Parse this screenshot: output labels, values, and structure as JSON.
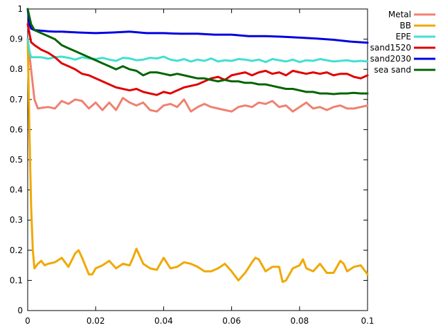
{
  "chart_data": {
    "type": "line",
    "title": "",
    "xlabel": "",
    "ylabel": "",
    "xlim": [
      0,
      0.1
    ],
    "ylim": [
      0,
      1
    ],
    "x_ticks": [
      0,
      0.02,
      0.04,
      0.06,
      0.08,
      0.1
    ],
    "x_tick_labels": [
      "0",
      "0.02",
      "0.04",
      "0.06",
      "0.08",
      "0.1"
    ],
    "y_ticks": [
      0,
      0.1,
      0.2,
      0.3,
      0.4,
      0.5,
      0.6,
      0.7,
      0.8,
      0.9,
      1
    ],
    "y_tick_labels": [
      "0",
      "0.1",
      "0.2",
      "0.3",
      "0.4",
      "0.5",
      "0.6",
      "0.7",
      "0.8",
      "0.9",
      "1"
    ],
    "grid": false,
    "legend_position": "outside top-right",
    "series": [
      {
        "name": "Metal",
        "color": "#f08070",
        "x": [
          0,
          0.001,
          0.002,
          0.003,
          0.004,
          0.006,
          0.008,
          0.01,
          0.012,
          0.014,
          0.016,
          0.018,
          0.02,
          0.022,
          0.024,
          0.026,
          0.028,
          0.03,
          0.032,
          0.034,
          0.036,
          0.038,
          0.04,
          0.042,
          0.044,
          0.046,
          0.048,
          0.05,
          0.052,
          0.054,
          0.056,
          0.058,
          0.06,
          0.062,
          0.064,
          0.066,
          0.068,
          0.07,
          0.072,
          0.074,
          0.076,
          0.078,
          0.08,
          0.082,
          0.084,
          0.086,
          0.088,
          0.09,
          0.092,
          0.094,
          0.096,
          0.098,
          0.1
        ],
        "y": [
          0.9,
          0.8,
          0.7,
          0.67,
          0.672,
          0.675,
          0.67,
          0.695,
          0.685,
          0.7,
          0.695,
          0.67,
          0.69,
          0.665,
          0.69,
          0.665,
          0.705,
          0.69,
          0.68,
          0.69,
          0.665,
          0.66,
          0.68,
          0.685,
          0.675,
          0.7,
          0.66,
          0.675,
          0.685,
          0.675,
          0.67,
          0.665,
          0.66,
          0.675,
          0.68,
          0.675,
          0.69,
          0.685,
          0.695,
          0.675,
          0.68,
          0.66,
          0.675,
          0.69,
          0.67,
          0.675,
          0.665,
          0.675,
          0.68,
          0.67,
          0.67,
          0.675,
          0.68
        ]
      },
      {
        "name": "BB",
        "color": "#f0a800",
        "x": [
          0,
          0.0005,
          0.001,
          0.0015,
          0.002,
          0.003,
          0.004,
          0.005,
          0.006,
          0.008,
          0.01,
          0.012,
          0.014,
          0.015,
          0.016,
          0.018,
          0.019,
          0.02,
          0.022,
          0.024,
          0.026,
          0.028,
          0.03,
          0.031,
          0.032,
          0.034,
          0.036,
          0.038,
          0.04,
          0.042,
          0.044,
          0.046,
          0.048,
          0.05,
          0.052,
          0.054,
          0.056,
          0.058,
          0.06,
          0.062,
          0.064,
          0.066,
          0.067,
          0.068,
          0.07,
          0.072,
          0.074,
          0.075,
          0.076,
          0.078,
          0.08,
          0.081,
          0.082,
          0.084,
          0.086,
          0.088,
          0.09,
          0.092,
          0.093,
          0.094,
          0.096,
          0.098,
          0.1
        ],
        "y": [
          0.9,
          0.6,
          0.35,
          0.2,
          0.14,
          0.155,
          0.165,
          0.15,
          0.155,
          0.16,
          0.175,
          0.145,
          0.19,
          0.2,
          0.175,
          0.12,
          0.12,
          0.14,
          0.15,
          0.165,
          0.14,
          0.155,
          0.15,
          0.175,
          0.205,
          0.155,
          0.14,
          0.135,
          0.175,
          0.14,
          0.145,
          0.16,
          0.155,
          0.145,
          0.13,
          0.13,
          0.14,
          0.155,
          0.13,
          0.1,
          0.125,
          0.16,
          0.175,
          0.17,
          0.13,
          0.145,
          0.145,
          0.095,
          0.1,
          0.14,
          0.15,
          0.17,
          0.14,
          0.13,
          0.155,
          0.125,
          0.125,
          0.165,
          0.155,
          0.13,
          0.145,
          0.15,
          0.12
        ]
      },
      {
        "name": "EPE",
        "color": "#40e0d0",
        "x": [
          0,
          0.0005,
          0.001,
          0.002,
          0.004,
          0.006,
          0.008,
          0.01,
          0.012,
          0.014,
          0.016,
          0.018,
          0.02,
          0.022,
          0.024,
          0.026,
          0.028,
          0.03,
          0.032,
          0.034,
          0.036,
          0.038,
          0.04,
          0.042,
          0.044,
          0.046,
          0.048,
          0.05,
          0.052,
          0.054,
          0.056,
          0.058,
          0.06,
          0.062,
          0.064,
          0.066,
          0.068,
          0.07,
          0.072,
          0.074,
          0.076,
          0.078,
          0.08,
          0.082,
          0.084,
          0.086,
          0.088,
          0.09,
          0.092,
          0.094,
          0.096,
          0.098,
          0.1
        ],
        "y": [
          0.9,
          0.86,
          0.84,
          0.84,
          0.84,
          0.835,
          0.84,
          0.842,
          0.838,
          0.832,
          0.84,
          0.836,
          0.834,
          0.838,
          0.832,
          0.828,
          0.838,
          0.836,
          0.83,
          0.832,
          0.838,
          0.836,
          0.842,
          0.832,
          0.828,
          0.834,
          0.826,
          0.832,
          0.828,
          0.836,
          0.826,
          0.83,
          0.828,
          0.834,
          0.832,
          0.828,
          0.832,
          0.824,
          0.834,
          0.83,
          0.826,
          0.832,
          0.824,
          0.83,
          0.828,
          0.834,
          0.83,
          0.826,
          0.828,
          0.83,
          0.826,
          0.828,
          0.826
        ]
      },
      {
        "name": "sand1520",
        "color": "#e00000",
        "x": [
          0,
          0.001,
          0.002,
          0.004,
          0.006,
          0.008,
          0.01,
          0.012,
          0.014,
          0.016,
          0.018,
          0.02,
          0.022,
          0.024,
          0.026,
          0.028,
          0.03,
          0.032,
          0.034,
          0.036,
          0.038,
          0.04,
          0.042,
          0.044,
          0.046,
          0.048,
          0.05,
          0.052,
          0.054,
          0.056,
          0.058,
          0.06,
          0.062,
          0.064,
          0.066,
          0.068,
          0.07,
          0.072,
          0.074,
          0.076,
          0.078,
          0.08,
          0.082,
          0.084,
          0.086,
          0.088,
          0.09,
          0.092,
          0.094,
          0.096,
          0.098,
          0.1
        ],
        "y": [
          0.95,
          0.89,
          0.88,
          0.865,
          0.855,
          0.84,
          0.82,
          0.81,
          0.8,
          0.785,
          0.78,
          0.77,
          0.76,
          0.75,
          0.74,
          0.735,
          0.73,
          0.735,
          0.725,
          0.72,
          0.715,
          0.725,
          0.72,
          0.73,
          0.74,
          0.745,
          0.75,
          0.76,
          0.77,
          0.775,
          0.765,
          0.78,
          0.785,
          0.79,
          0.78,
          0.79,
          0.795,
          0.785,
          0.79,
          0.78,
          0.795,
          0.79,
          0.785,
          0.79,
          0.785,
          0.79,
          0.78,
          0.785,
          0.785,
          0.775,
          0.77,
          0.78
        ]
      },
      {
        "name": "sand2030",
        "color": "#0000e0",
        "x": [
          0,
          0.0005,
          0.001,
          0.002,
          0.004,
          0.006,
          0.008,
          0.01,
          0.015,
          0.02,
          0.025,
          0.03,
          0.035,
          0.04,
          0.045,
          0.05,
          0.055,
          0.06,
          0.065,
          0.07,
          0.075,
          0.08,
          0.085,
          0.09,
          0.095,
          0.1
        ],
        "y": [
          1,
          0.95,
          0.935,
          0.93,
          0.928,
          0.926,
          0.925,
          0.925,
          0.922,
          0.92,
          0.922,
          0.925,
          0.92,
          0.92,
          0.918,
          0.918,
          0.915,
          0.915,
          0.91,
          0.91,
          0.908,
          0.905,
          0.902,
          0.898,
          0.892,
          0.888
        ]
      },
      {
        "name": "sea sand",
        "color": "#006400",
        "x": [
          0,
          0.001,
          0.002,
          0.004,
          0.006,
          0.008,
          0.01,
          0.012,
          0.014,
          0.016,
          0.018,
          0.02,
          0.022,
          0.024,
          0.026,
          0.028,
          0.03,
          0.032,
          0.034,
          0.036,
          0.038,
          0.04,
          0.042,
          0.044,
          0.046,
          0.048,
          0.05,
          0.052,
          0.054,
          0.056,
          0.058,
          0.06,
          0.062,
          0.064,
          0.066,
          0.068,
          0.07,
          0.072,
          0.074,
          0.076,
          0.078,
          0.08,
          0.082,
          0.084,
          0.086,
          0.088,
          0.09,
          0.092,
          0.094,
          0.096,
          0.098,
          0.1
        ],
        "y": [
          1,
          0.95,
          0.93,
          0.92,
          0.91,
          0.9,
          0.88,
          0.87,
          0.86,
          0.85,
          0.84,
          0.83,
          0.82,
          0.81,
          0.8,
          0.81,
          0.8,
          0.795,
          0.78,
          0.79,
          0.79,
          0.785,
          0.78,
          0.785,
          0.78,
          0.775,
          0.77,
          0.77,
          0.765,
          0.76,
          0.765,
          0.76,
          0.76,
          0.755,
          0.755,
          0.75,
          0.75,
          0.745,
          0.74,
          0.735,
          0.735,
          0.73,
          0.725,
          0.725,
          0.72,
          0.72,
          0.718,
          0.72,
          0.72,
          0.722,
          0.72,
          0.72
        ]
      }
    ]
  }
}
